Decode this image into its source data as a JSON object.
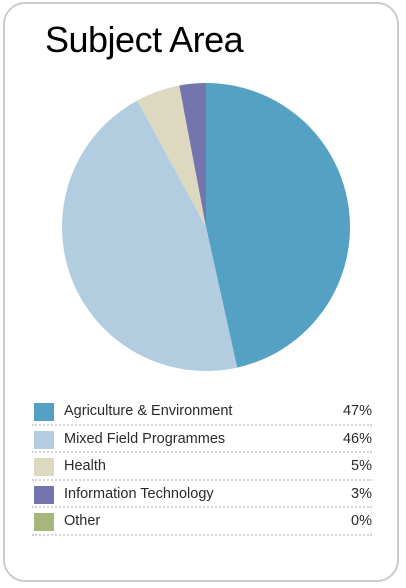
{
  "title": "Subject Area",
  "chart_data": {
    "type": "pie",
    "title": "Subject Area",
    "legend_position": "bottom",
    "slices": [
      {
        "label": "Agriculture & Environment",
        "value": 47,
        "display": "47%",
        "color": "#55a1c4"
      },
      {
        "label": "Mixed Field Programmes",
        "value": 46,
        "display": "46%",
        "color": "#b3cde0"
      },
      {
        "label": "Health",
        "value": 5,
        "display": "5%",
        "color": "#ddd8c0"
      },
      {
        "label": "Information Technology",
        "value": 3,
        "display": "3%",
        "color": "#7575ae"
      },
      {
        "label": "Other",
        "value": 0,
        "display": "0%",
        "color": "#a7b67b"
      }
    ]
  }
}
